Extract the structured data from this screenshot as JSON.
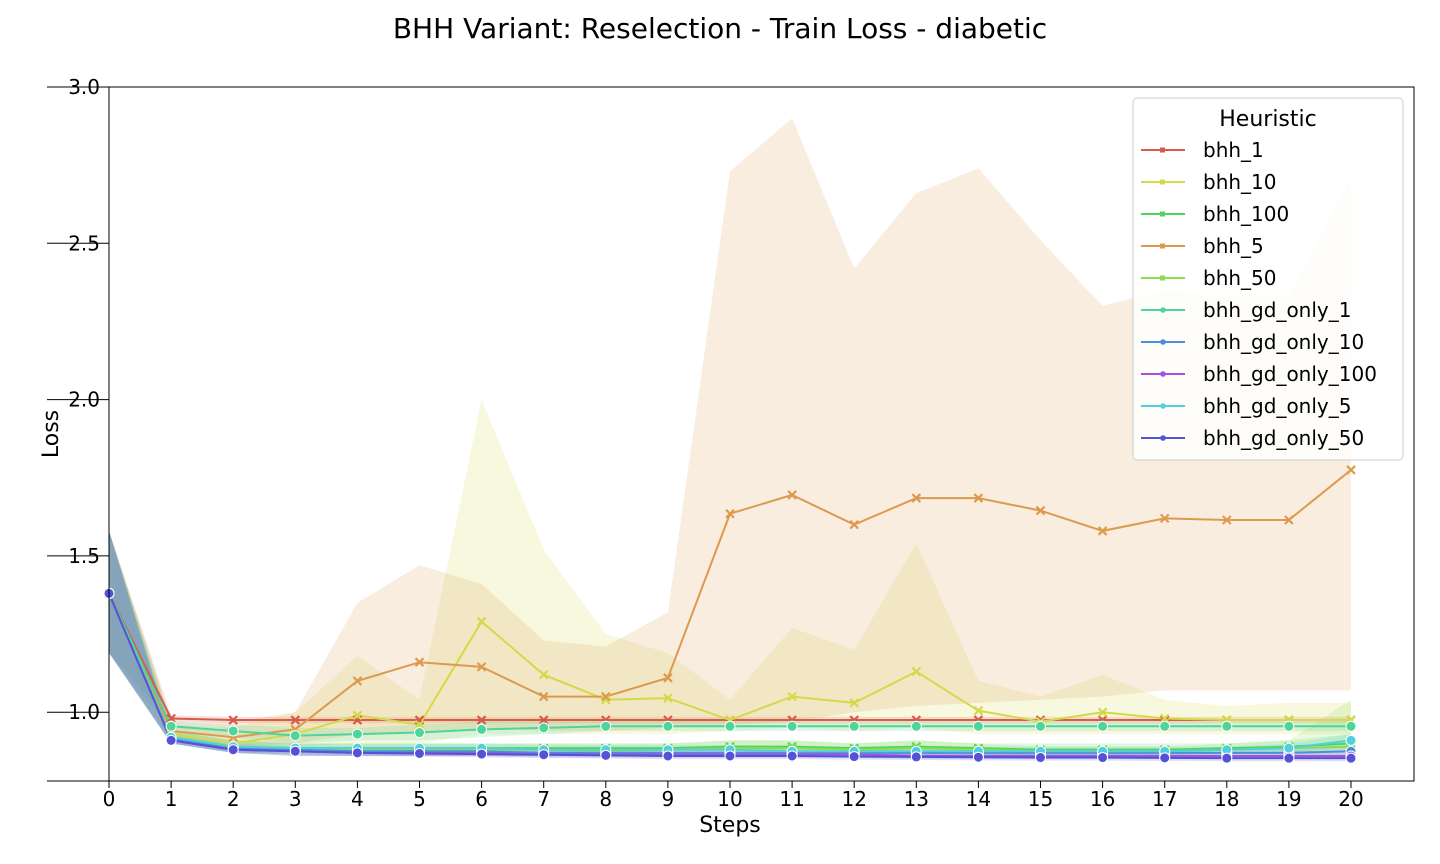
{
  "chart_data": {
    "type": "line",
    "title": "BHH Variant: Reselection - Train Loss - diabetic",
    "xlabel": "Steps",
    "ylabel": "Loss",
    "xlim": [
      0,
      20
    ],
    "ylim": [
      0.78,
      3.0
    ],
    "x_ticks": [
      0,
      1,
      2,
      3,
      4,
      5,
      6,
      7,
      8,
      9,
      10,
      11,
      12,
      13,
      14,
      15,
      16,
      17,
      18,
      19,
      20
    ],
    "y_ticks": [
      1.0,
      1.5,
      2.0,
      2.5,
      3.0
    ],
    "y_tick_labels": [
      "1.0",
      "1.5",
      "2.0",
      "2.5",
      "3.0"
    ],
    "legend_title": "Heuristic",
    "legend_position": "top-right",
    "grid": false,
    "x": [
      0,
      1,
      2,
      3,
      4,
      5,
      6,
      7,
      8,
      9,
      10,
      11,
      12,
      13,
      14,
      15,
      16,
      17,
      18,
      19,
      20
    ],
    "series": [
      {
        "name": "bhh_1",
        "color": "#d65a4e",
        "marker": "x",
        "values": [
          1.38,
          0.98,
          0.975,
          0.975,
          0.975,
          0.975,
          0.975,
          0.975,
          0.975,
          0.975,
          0.975,
          0.975,
          0.975,
          0.975,
          0.975,
          0.975,
          0.975,
          0.975,
          0.975,
          0.975,
          0.975
        ],
        "lower": [
          1.19,
          0.97,
          0.965,
          0.965,
          0.965,
          0.965,
          0.965,
          0.965,
          0.965,
          0.965,
          0.965,
          0.965,
          0.965,
          0.965,
          0.965,
          0.965,
          0.965,
          0.965,
          0.965,
          0.965,
          0.965
        ],
        "upper": [
          1.58,
          0.99,
          0.985,
          0.985,
          0.985,
          0.985,
          0.985,
          0.985,
          0.985,
          0.985,
          0.985,
          0.985,
          0.985,
          0.985,
          0.985,
          0.985,
          0.985,
          0.985,
          0.985,
          0.985,
          0.985
        ]
      },
      {
        "name": "bhh_10",
        "color": "#d4d94a",
        "marker": "x",
        "values": [
          1.38,
          0.93,
          0.9,
          0.93,
          0.99,
          0.96,
          1.29,
          1.12,
          1.04,
          1.045,
          0.975,
          1.05,
          1.03,
          1.13,
          1.005,
          0.97,
          1.0,
          0.98,
          0.975,
          0.975,
          0.975
        ],
        "lower": [
          1.19,
          0.91,
          0.88,
          0.89,
          0.9,
          0.9,
          0.93,
          0.93,
          0.93,
          0.93,
          0.94,
          0.95,
          0.94,
          0.95,
          0.93,
          0.93,
          0.93,
          0.93,
          0.93,
          0.93,
          0.93
        ],
        "upper": [
          1.58,
          0.96,
          0.95,
          1.0,
          1.18,
          1.04,
          2.0,
          1.52,
          1.25,
          1.19,
          1.04,
          1.27,
          1.2,
          1.54,
          1.1,
          1.05,
          1.12,
          1.04,
          1.02,
          1.03,
          1.03
        ]
      },
      {
        "name": "bhh_100",
        "color": "#52d45a",
        "marker": "x",
        "values": [
          1.38,
          0.92,
          0.89,
          0.885,
          0.885,
          0.885,
          0.885,
          0.885,
          0.885,
          0.885,
          0.89,
          0.89,
          0.885,
          0.89,
          0.885,
          0.88,
          0.88,
          0.88,
          0.885,
          0.89,
          0.9
        ],
        "lower": [
          1.19,
          0.9,
          0.87,
          0.87,
          0.87,
          0.87,
          0.87,
          0.87,
          0.87,
          0.87,
          0.87,
          0.87,
          0.87,
          0.87,
          0.87,
          0.86,
          0.86,
          0.86,
          0.87,
          0.87,
          0.87
        ],
        "upper": [
          1.58,
          0.94,
          0.91,
          0.9,
          0.9,
          0.9,
          0.9,
          0.9,
          0.9,
          0.9,
          0.91,
          0.91,
          0.9,
          0.91,
          0.9,
          0.9,
          0.9,
          0.9,
          0.9,
          0.91,
          0.93
        ]
      },
      {
        "name": "bhh_5",
        "color": "#dd9a4e",
        "marker": "x",
        "values": [
          1.38,
          0.94,
          0.92,
          0.945,
          1.1,
          1.16,
          1.145,
          1.05,
          1.05,
          1.11,
          1.635,
          1.695,
          1.6,
          1.685,
          1.685,
          1.645,
          1.58,
          1.62,
          1.615,
          1.615,
          1.775
        ],
        "lower": [
          1.19,
          0.91,
          0.89,
          0.9,
          0.93,
          0.93,
          0.95,
          0.94,
          0.94,
          0.95,
          0.96,
          0.97,
          1.0,
          1.02,
          1.03,
          1.04,
          1.05,
          1.07,
          1.07,
          1.07,
          1.07
        ],
        "upper": [
          1.58,
          0.97,
          0.97,
          1.0,
          1.35,
          1.47,
          1.41,
          1.23,
          1.21,
          1.32,
          2.73,
          2.9,
          2.42,
          2.66,
          2.74,
          2.51,
          2.3,
          2.35,
          2.33,
          2.33,
          2.71
        ]
      },
      {
        "name": "bhh_50",
        "color": "#8ddb52",
        "marker": "x",
        "values": [
          1.38,
          0.92,
          0.89,
          0.88,
          0.88,
          0.88,
          0.88,
          0.88,
          0.875,
          0.88,
          0.885,
          0.885,
          0.88,
          0.885,
          0.88,
          0.875,
          0.875,
          0.875,
          0.88,
          0.885,
          0.89
        ],
        "lower": [
          1.19,
          0.9,
          0.87,
          0.86,
          0.86,
          0.86,
          0.86,
          0.86,
          0.86,
          0.86,
          0.86,
          0.86,
          0.86,
          0.86,
          0.86,
          0.86,
          0.86,
          0.86,
          0.86,
          0.86,
          0.86
        ],
        "upper": [
          1.58,
          0.94,
          0.91,
          0.9,
          0.9,
          0.9,
          0.9,
          0.9,
          0.9,
          0.9,
          0.91,
          0.91,
          0.9,
          0.91,
          0.9,
          0.89,
          0.89,
          0.89,
          0.9,
          0.91,
          1.04
        ]
      },
      {
        "name": "bhh_gd_only_1",
        "color": "#4fd49a",
        "marker": "o",
        "values": [
          1.38,
          0.955,
          0.94,
          0.925,
          0.93,
          0.935,
          0.945,
          0.95,
          0.955,
          0.955,
          0.955,
          0.955,
          0.955,
          0.955,
          0.955,
          0.955,
          0.955,
          0.955,
          0.955,
          0.955,
          0.955
        ],
        "lower": [
          1.19,
          0.94,
          0.92,
          0.9,
          0.91,
          0.91,
          0.92,
          0.93,
          0.94,
          0.94,
          0.94,
          0.94,
          0.94,
          0.94,
          0.94,
          0.94,
          0.94,
          0.94,
          0.94,
          0.94,
          0.94
        ],
        "upper": [
          1.58,
          0.97,
          0.96,
          0.95,
          0.95,
          0.96,
          0.97,
          0.97,
          0.97,
          0.97,
          0.97,
          0.97,
          0.97,
          0.97,
          0.97,
          0.97,
          0.97,
          0.97,
          0.97,
          0.97,
          0.97
        ]
      },
      {
        "name": "bhh_gd_only_10",
        "color": "#4a8fdb",
        "marker": "o",
        "values": [
          1.38,
          0.915,
          0.885,
          0.88,
          0.875,
          0.875,
          0.875,
          0.87,
          0.87,
          0.87,
          0.87,
          0.87,
          0.87,
          0.87,
          0.87,
          0.87,
          0.87,
          0.87,
          0.87,
          0.87,
          0.875
        ],
        "lower": [
          1.19,
          0.9,
          0.87,
          0.86,
          0.86,
          0.86,
          0.86,
          0.86,
          0.86,
          0.86,
          0.86,
          0.86,
          0.86,
          0.86,
          0.86,
          0.86,
          0.86,
          0.86,
          0.86,
          0.86,
          0.86
        ],
        "upper": [
          1.58,
          0.93,
          0.9,
          0.89,
          0.89,
          0.89,
          0.89,
          0.885,
          0.885,
          0.885,
          0.885,
          0.885,
          0.885,
          0.885,
          0.885,
          0.885,
          0.885,
          0.885,
          0.885,
          0.885,
          0.89
        ]
      },
      {
        "name": "bhh_gd_only_100",
        "color": "#a252db",
        "marker": "o",
        "values": [
          1.38,
          0.91,
          0.88,
          0.875,
          0.87,
          0.87,
          0.87,
          0.865,
          0.865,
          0.865,
          0.865,
          0.865,
          0.865,
          0.86,
          0.86,
          0.86,
          0.86,
          0.86,
          0.86,
          0.86,
          0.86
        ],
        "lower": [
          1.19,
          0.9,
          0.87,
          0.86,
          0.86,
          0.86,
          0.86,
          0.855,
          0.855,
          0.855,
          0.855,
          0.855,
          0.855,
          0.85,
          0.85,
          0.85,
          0.85,
          0.85,
          0.85,
          0.85,
          0.85
        ],
        "upper": [
          1.58,
          0.92,
          0.89,
          0.885,
          0.88,
          0.88,
          0.88,
          0.875,
          0.875,
          0.875,
          0.875,
          0.875,
          0.875,
          0.87,
          0.87,
          0.87,
          0.87,
          0.87,
          0.87,
          0.87,
          0.87
        ]
      },
      {
        "name": "bhh_gd_only_5",
        "color": "#52cfdb",
        "marker": "o",
        "values": [
          1.38,
          0.92,
          0.89,
          0.885,
          0.885,
          0.885,
          0.885,
          0.88,
          0.88,
          0.88,
          0.88,
          0.875,
          0.875,
          0.875,
          0.875,
          0.875,
          0.875,
          0.875,
          0.88,
          0.885,
          0.91
        ],
        "lower": [
          1.19,
          0.9,
          0.88,
          0.87,
          0.87,
          0.87,
          0.87,
          0.87,
          0.87,
          0.87,
          0.87,
          0.865,
          0.865,
          0.865,
          0.865,
          0.865,
          0.865,
          0.865,
          0.87,
          0.87,
          0.89
        ],
        "upper": [
          1.58,
          0.94,
          0.91,
          0.9,
          0.9,
          0.9,
          0.9,
          0.895,
          0.895,
          0.895,
          0.895,
          0.89,
          0.89,
          0.89,
          0.89,
          0.89,
          0.89,
          0.89,
          0.89,
          0.9,
          0.93
        ]
      },
      {
        "name": "bhh_gd_only_50",
        "color": "#5452d6",
        "marker": "o",
        "values": [
          1.38,
          0.91,
          0.88,
          0.875,
          0.87,
          0.868,
          0.866,
          0.864,
          0.862,
          0.86,
          0.86,
          0.86,
          0.858,
          0.857,
          0.856,
          0.855,
          0.855,
          0.854,
          0.853,
          0.853,
          0.853
        ],
        "lower": [
          1.19,
          0.9,
          0.87,
          0.865,
          0.86,
          0.858,
          0.856,
          0.854,
          0.852,
          0.85,
          0.85,
          0.85,
          0.848,
          0.847,
          0.846,
          0.845,
          0.845,
          0.844,
          0.843,
          0.843,
          0.843
        ],
        "upper": [
          1.58,
          0.92,
          0.89,
          0.885,
          0.88,
          0.878,
          0.876,
          0.874,
          0.872,
          0.87,
          0.87,
          0.87,
          0.868,
          0.867,
          0.866,
          0.865,
          0.865,
          0.864,
          0.863,
          0.863,
          0.863
        ]
      }
    ]
  }
}
